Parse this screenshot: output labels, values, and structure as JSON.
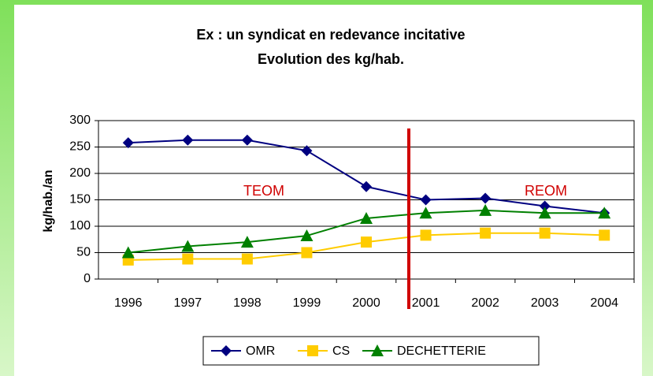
{
  "chart_data": {
    "type": "line",
    "title": "Ex : un syndicat en redevance incitative",
    "subtitle": "Evolution des kg/hab.",
    "y_label": "kg/hab./an",
    "categories": [
      "1996",
      "1997",
      "1998",
      "1999",
      "2000",
      "2001",
      "2002",
      "2003",
      "2004"
    ],
    "series": [
      {
        "name": "OMR",
        "color": "#000080",
        "marker": "diamond",
        "values": [
          258,
          263,
          263,
          243,
          175,
          150,
          153,
          138,
          125
        ]
      },
      {
        "name": "CS",
        "color": "#ffcc00",
        "marker": "square",
        "values": [
          36,
          38,
          38,
          50,
          70,
          83,
          87,
          87,
          83
        ]
      },
      {
        "name": "DECHETTERIE",
        "color": "#008000",
        "marker": "triangle",
        "values": [
          50,
          62,
          70,
          82,
          115,
          125,
          130,
          125,
          125
        ]
      }
    ],
    "annotations": [
      "TEOM",
      "REOM"
    ],
    "ylim": [
      0,
      300
    ],
    "yticks": [
      0,
      50,
      100,
      150,
      200,
      250,
      300
    ],
    "grid": true,
    "legend": "bottom"
  }
}
